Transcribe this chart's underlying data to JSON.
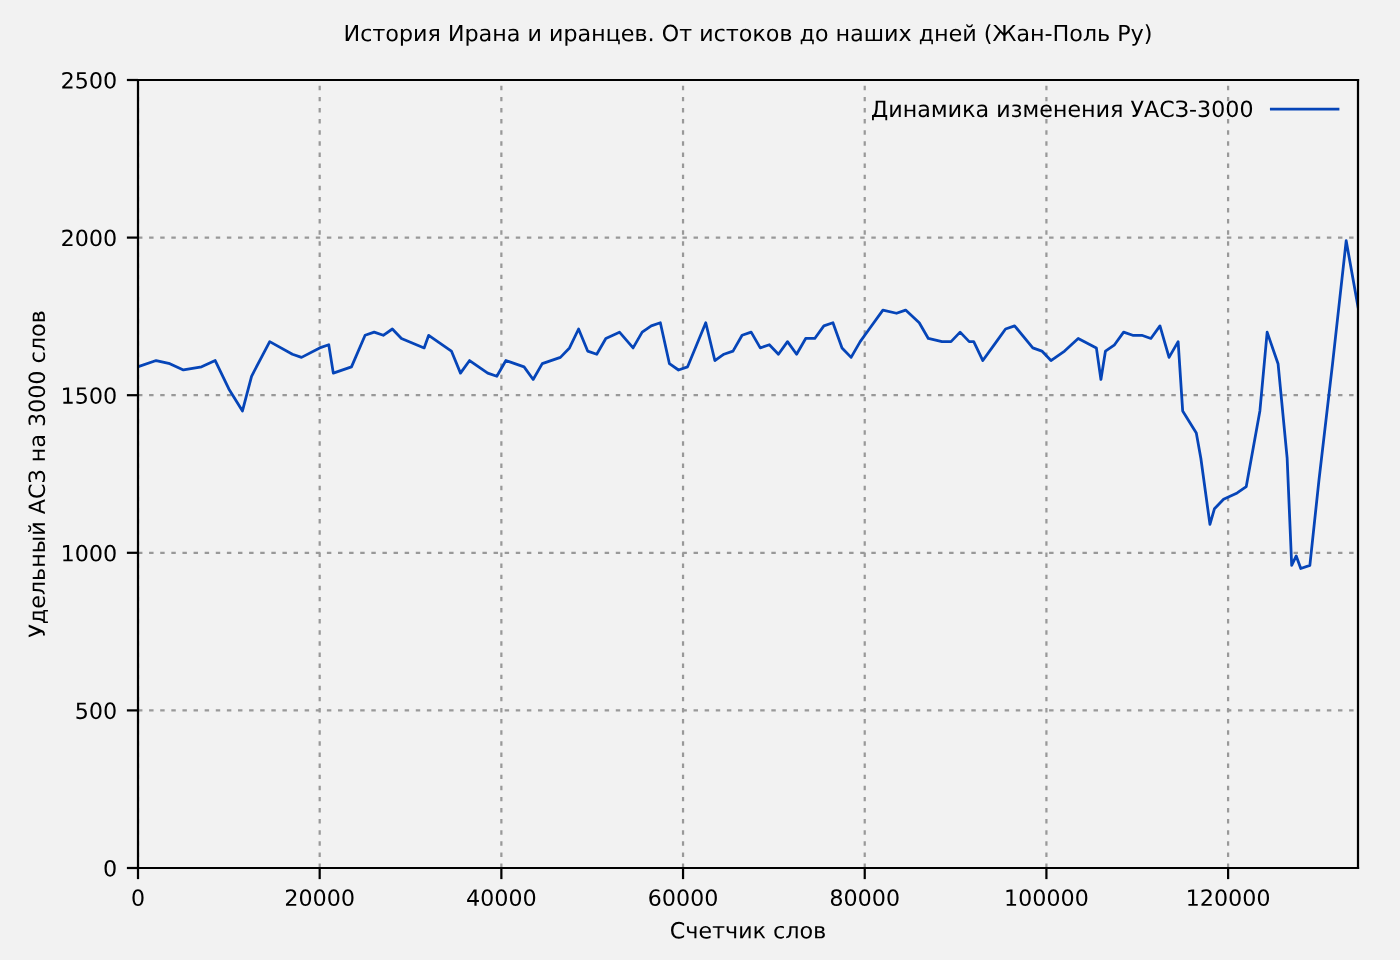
{
  "chart_data": {
    "type": "line",
    "title": "История Ирана и иранцев. От истоков до наших дней (Жан-Поль Ру)",
    "xlabel": "Счетчик слов",
    "ylabel": "Удельный АСЗ на 3000 слов",
    "xlim": [
      0,
      134300
    ],
    "ylim": [
      0,
      2500
    ],
    "xticks": [
      0,
      20000,
      40000,
      60000,
      80000,
      100000,
      120000
    ],
    "yticks": [
      0,
      500,
      1000,
      1500,
      2000,
      2500
    ],
    "grid": true,
    "legend": "top right",
    "line_style": "solid",
    "marker": "none",
    "series": [
      {
        "name": "Динамика изменения УАСЗ-3000",
        "color": "#0645b8",
        "x": [
          0,
          2000,
          3500,
          5000,
          7000,
          8500,
          10000,
          11500,
          12500,
          14500,
          17000,
          18000,
          20000,
          21000,
          21500,
          23500,
          25000,
          26000,
          27000,
          28000,
          29000,
          31500,
          32000,
          34500,
          35500,
          36500,
          38500,
          39500,
          40500,
          42500,
          43500,
          44500,
          46500,
          47500,
          48500,
          49500,
          50500,
          51500,
          53000,
          54500,
          55500,
          56500,
          57500,
          58500,
          59500,
          60500,
          61500,
          62500,
          63500,
          64500,
          65500,
          66500,
          67500,
          68500,
          69500,
          70500,
          71500,
          72500,
          73500,
          74500,
          75500,
          76500,
          77500,
          78500,
          79500,
          80500,
          82000,
          83500,
          84500,
          86000,
          87000,
          88500,
          89500,
          90500,
          91500,
          92000,
          93000,
          94500,
          95500,
          96500,
          98500,
          99500,
          100500,
          102000,
          103500,
          105500,
          106000,
          106500,
          107500,
          108500,
          109500,
          110500,
          111500,
          112500,
          113500,
          114500,
          115000,
          116500,
          117000,
          118000,
          118500,
          119500,
          121000,
          122000,
          123500,
          124300,
          125500,
          126500,
          127000,
          127500,
          128000,
          129000,
          130000,
          131500,
          133000,
          134300
        ],
        "values": [
          1590,
          1610,
          1600,
          1580,
          1590,
          1610,
          1520,
          1450,
          1560,
          1670,
          1630,
          1620,
          1650,
          1660,
          1570,
          1590,
          1690,
          1700,
          1690,
          1710,
          1680,
          1650,
          1690,
          1640,
          1570,
          1610,
          1570,
          1560,
          1610,
          1590,
          1550,
          1600,
          1620,
          1650,
          1710,
          1640,
          1630,
          1680,
          1700,
          1650,
          1700,
          1720,
          1730,
          1600,
          1580,
          1590,
          1660,
          1730,
          1610,
          1630,
          1640,
          1690,
          1700,
          1650,
          1660,
          1630,
          1670,
          1630,
          1680,
          1680,
          1720,
          1730,
          1650,
          1620,
          1670,
          1710,
          1770,
          1760,
          1770,
          1730,
          1680,
          1670,
          1670,
          1700,
          1670,
          1670,
          1610,
          1670,
          1710,
          1720,
          1650,
          1640,
          1610,
          1640,
          1680,
          1650,
          1550,
          1640,
          1660,
          1700,
          1690,
          1690,
          1680,
          1720,
          1620,
          1670,
          1450,
          1380,
          1300,
          1090,
          1140,
          1170,
          1190,
          1210,
          1450,
          1700,
          1600,
          1300,
          960,
          990,
          950,
          960,
          1230,
          1600,
          1990,
          1780
        ]
      }
    ]
  }
}
